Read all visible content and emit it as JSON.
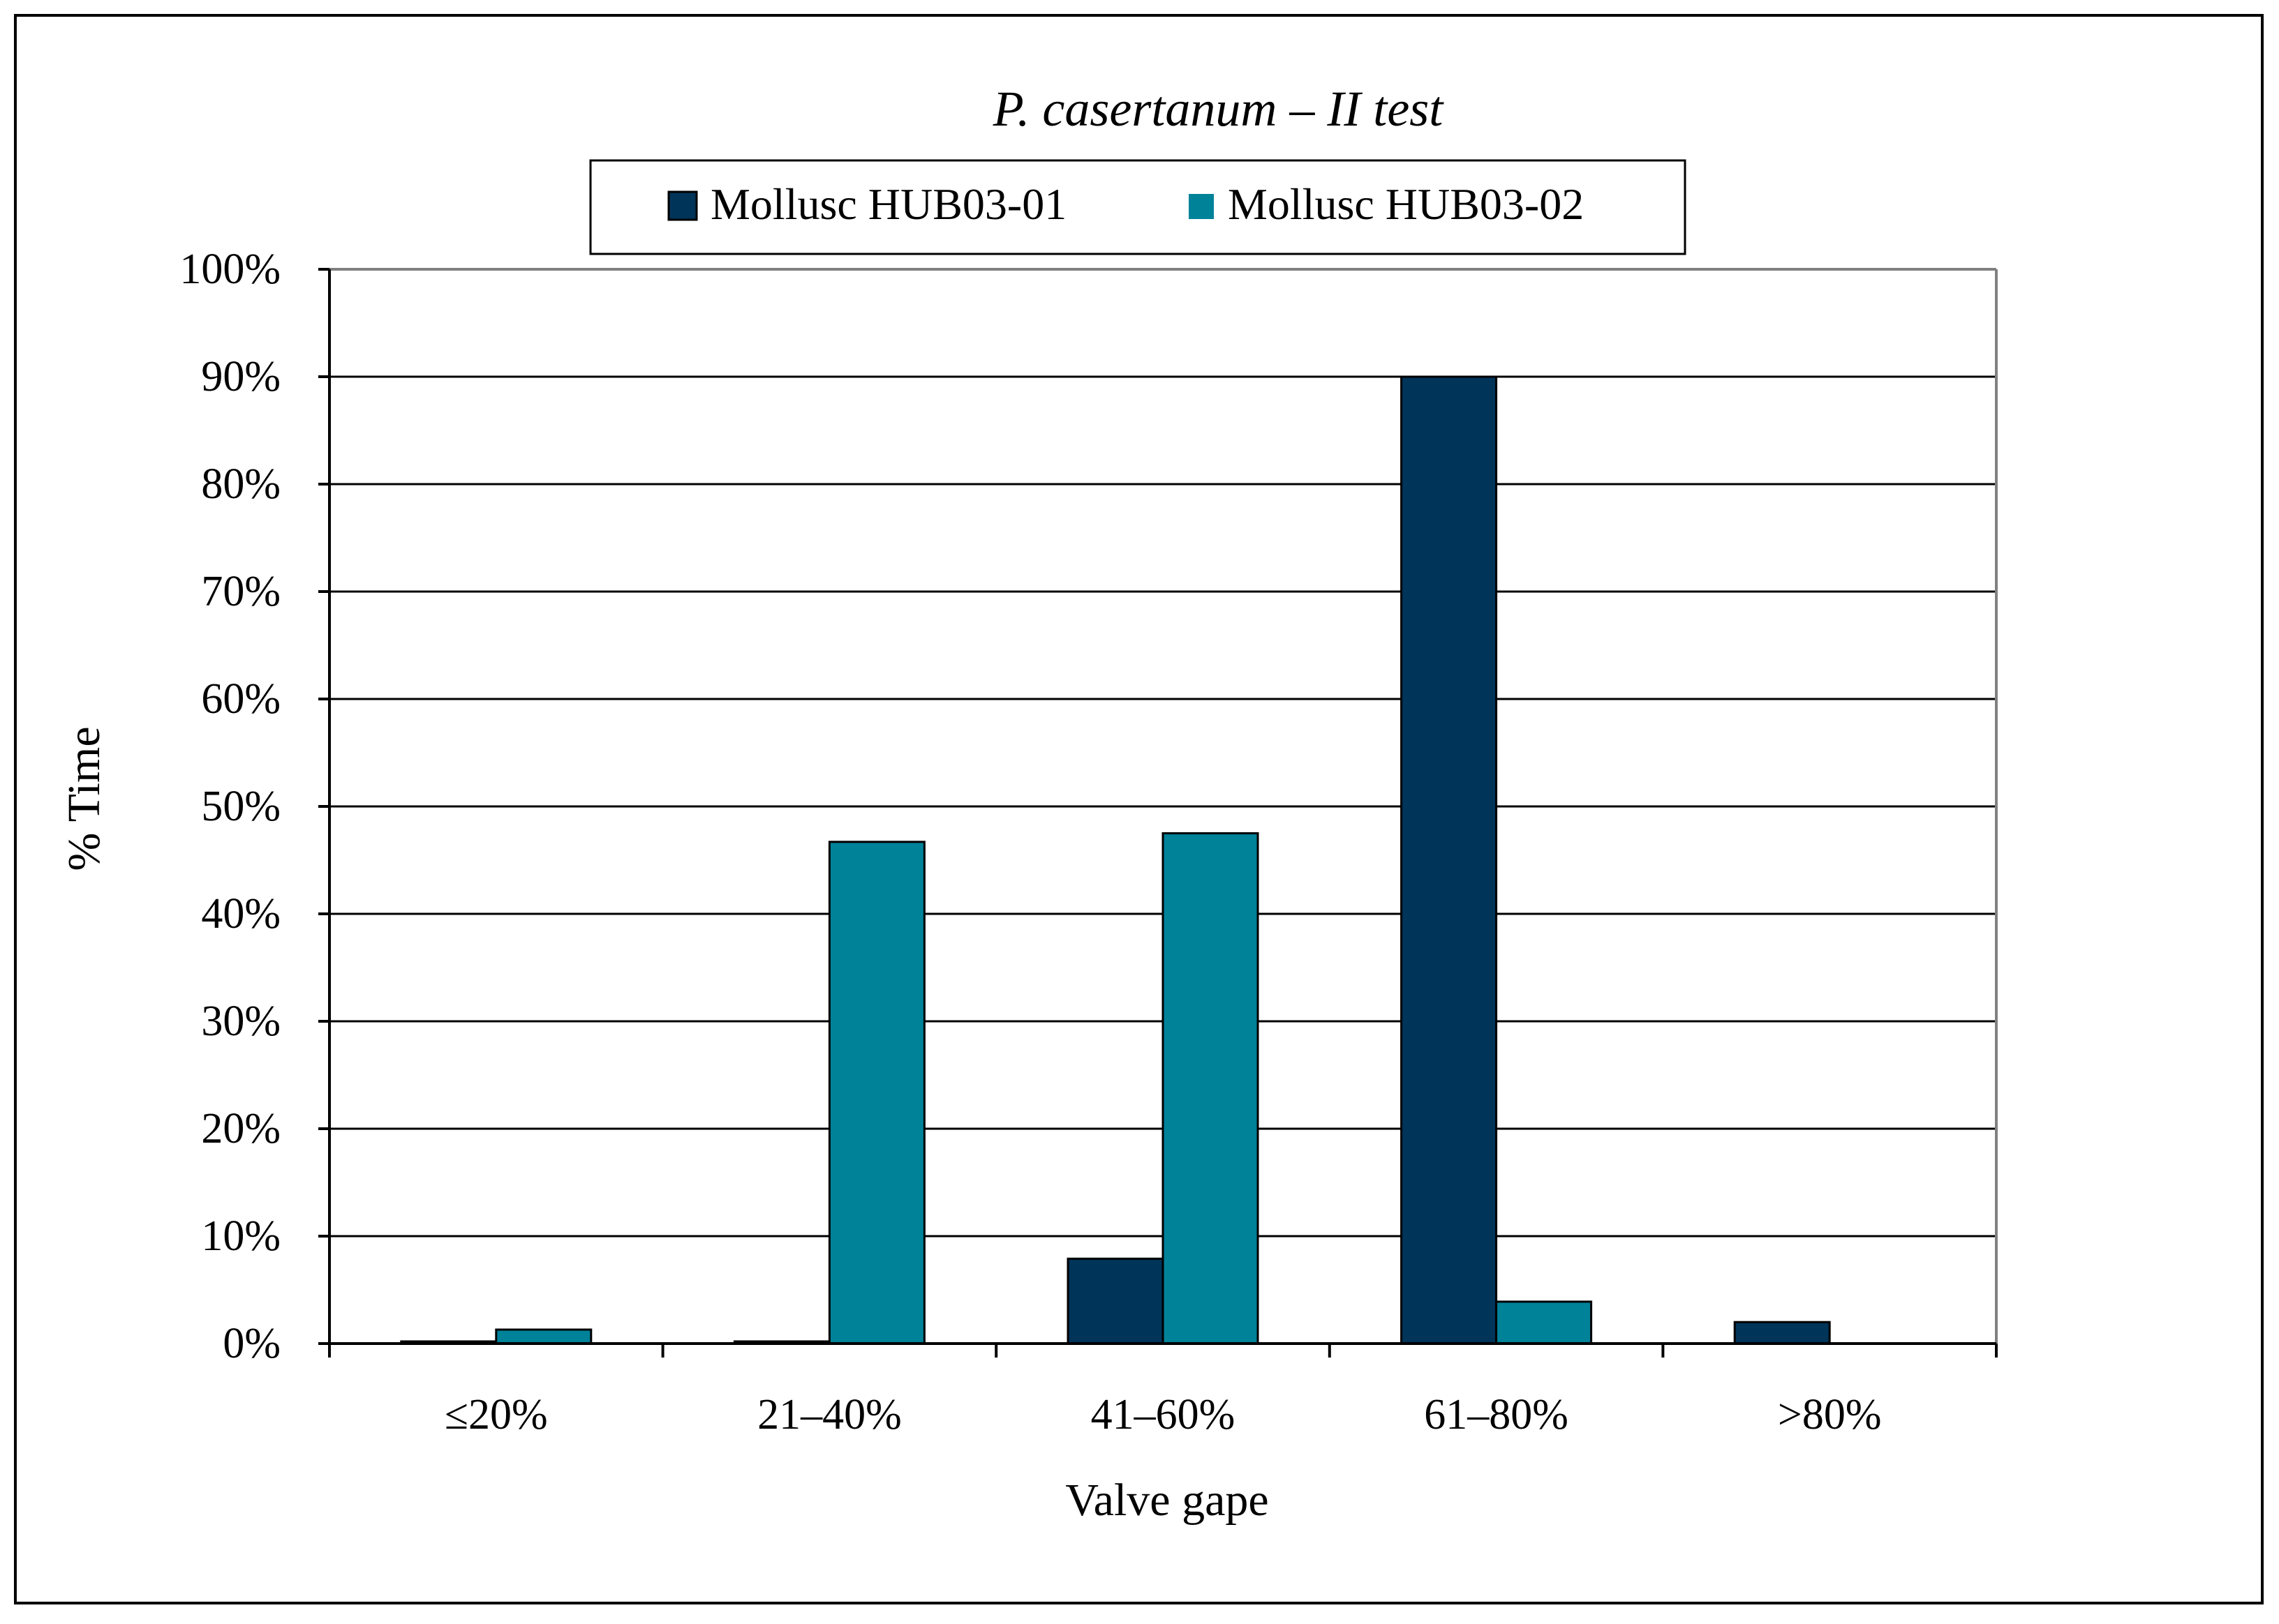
{
  "chart_data": {
    "type": "bar",
    "title": "P. casertanum – II test",
    "xlabel": "Valve gape",
    "ylabel": "% Time",
    "categories": [
      "≤20%",
      "21–40%",
      "41–60%",
      "61–80%",
      ">80%"
    ],
    "series": [
      {
        "name": "Mollusc HUB03-01",
        "color": "#003459",
        "values": [
          0.2,
          0.2,
          7.9,
          90.0,
          2.0
        ]
      },
      {
        "name": "Mollusc HUB03-02",
        "color": "#008299",
        "values": [
          1.3,
          46.7,
          47.5,
          3.9,
          0.0
        ]
      }
    ],
    "ylim": [
      0,
      100
    ],
    "yticks": [
      0,
      10,
      20,
      30,
      40,
      50,
      60,
      70,
      80,
      90,
      100
    ],
    "ytick_labels": [
      "0%",
      "10%",
      "20%",
      "30%",
      "40%",
      "50%",
      "60%",
      "70%",
      "80%",
      "90%",
      "100%"
    ],
    "grid": true,
    "legend_position": "top-center"
  }
}
